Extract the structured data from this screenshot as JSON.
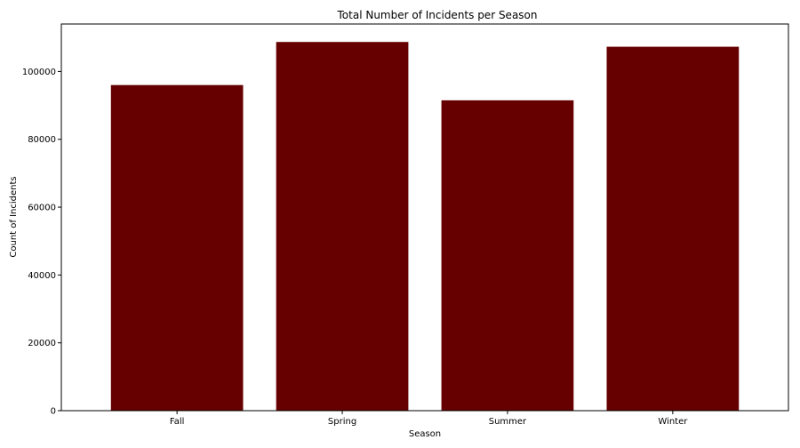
{
  "chart_data": {
    "type": "bar",
    "title": "Total Number of Incidents per Season",
    "xlabel": "Season",
    "ylabel": "Count of Incidents",
    "categories": [
      "Fall",
      "Spring",
      "Summer",
      "Winter"
    ],
    "values": [
      96000,
      108700,
      91500,
      107300
    ],
    "ylim": [
      0,
      114000
    ],
    "yticks": [
      0,
      20000,
      40000,
      60000,
      80000,
      100000
    ],
    "bar_color": "#660000",
    "grid": false,
    "legend": "none"
  }
}
